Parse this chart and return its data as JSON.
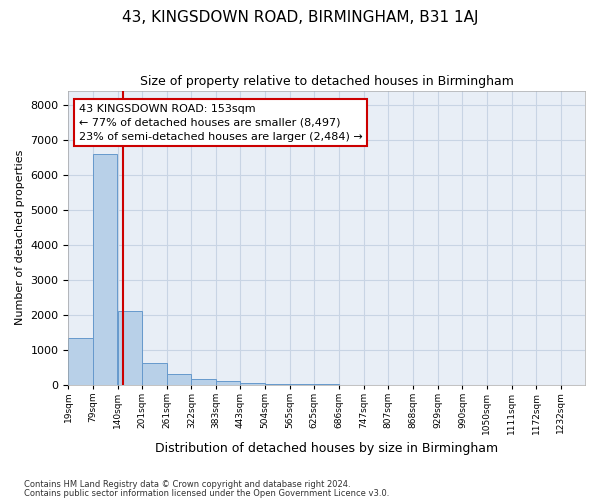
{
  "title1": "43, KINGSDOWN ROAD, BIRMINGHAM, B31 1AJ",
  "title2": "Size of property relative to detached houses in Birmingham",
  "xlabel": "Distribution of detached houses by size in Birmingham",
  "ylabel": "Number of detached properties",
  "footnote1": "Contains HM Land Registry data © Crown copyright and database right 2024.",
  "footnote2": "Contains public sector information licensed under the Open Government Licence v3.0.",
  "annotation_line1": "43 KINGSDOWN ROAD: 153sqm",
  "annotation_line2": "← 77% of detached houses are smaller (8,497)",
  "annotation_line3": "23% of semi-detached houses are larger (2,484) →",
  "bar_color": "#b8d0e8",
  "bar_edge_color": "#6699cc",
  "vline_color": "#cc0000",
  "annotation_box_edge": "#cc0000",
  "grid_color": "#c8d4e4",
  "bg_color": "#e8eef6",
  "bins": [
    19,
    79,
    140,
    201,
    261,
    322,
    383,
    443,
    504,
    565,
    625,
    686,
    747,
    807,
    868,
    929,
    990,
    1050,
    1111,
    1172,
    1232
  ],
  "bin_labels": [
    "19sqm",
    "79sqm",
    "140sqm",
    "201sqm",
    "261sqm",
    "322sqm",
    "383sqm",
    "443sqm",
    "504sqm",
    "565sqm",
    "625sqm",
    "686sqm",
    "747sqm",
    "807sqm",
    "868sqm",
    "929sqm",
    "990sqm",
    "1050sqm",
    "1111sqm",
    "1172sqm",
    "1232sqm"
  ],
  "counts": [
    1320,
    6600,
    2100,
    620,
    300,
    150,
    100,
    50,
    10,
    10,
    5,
    0,
    0,
    0,
    0,
    0,
    0,
    0,
    0,
    0
  ],
  "vline_x": 153,
  "ylim": [
    0,
    8400
  ],
  "yticks": [
    0,
    1000,
    2000,
    3000,
    4000,
    5000,
    6000,
    7000,
    8000
  ]
}
